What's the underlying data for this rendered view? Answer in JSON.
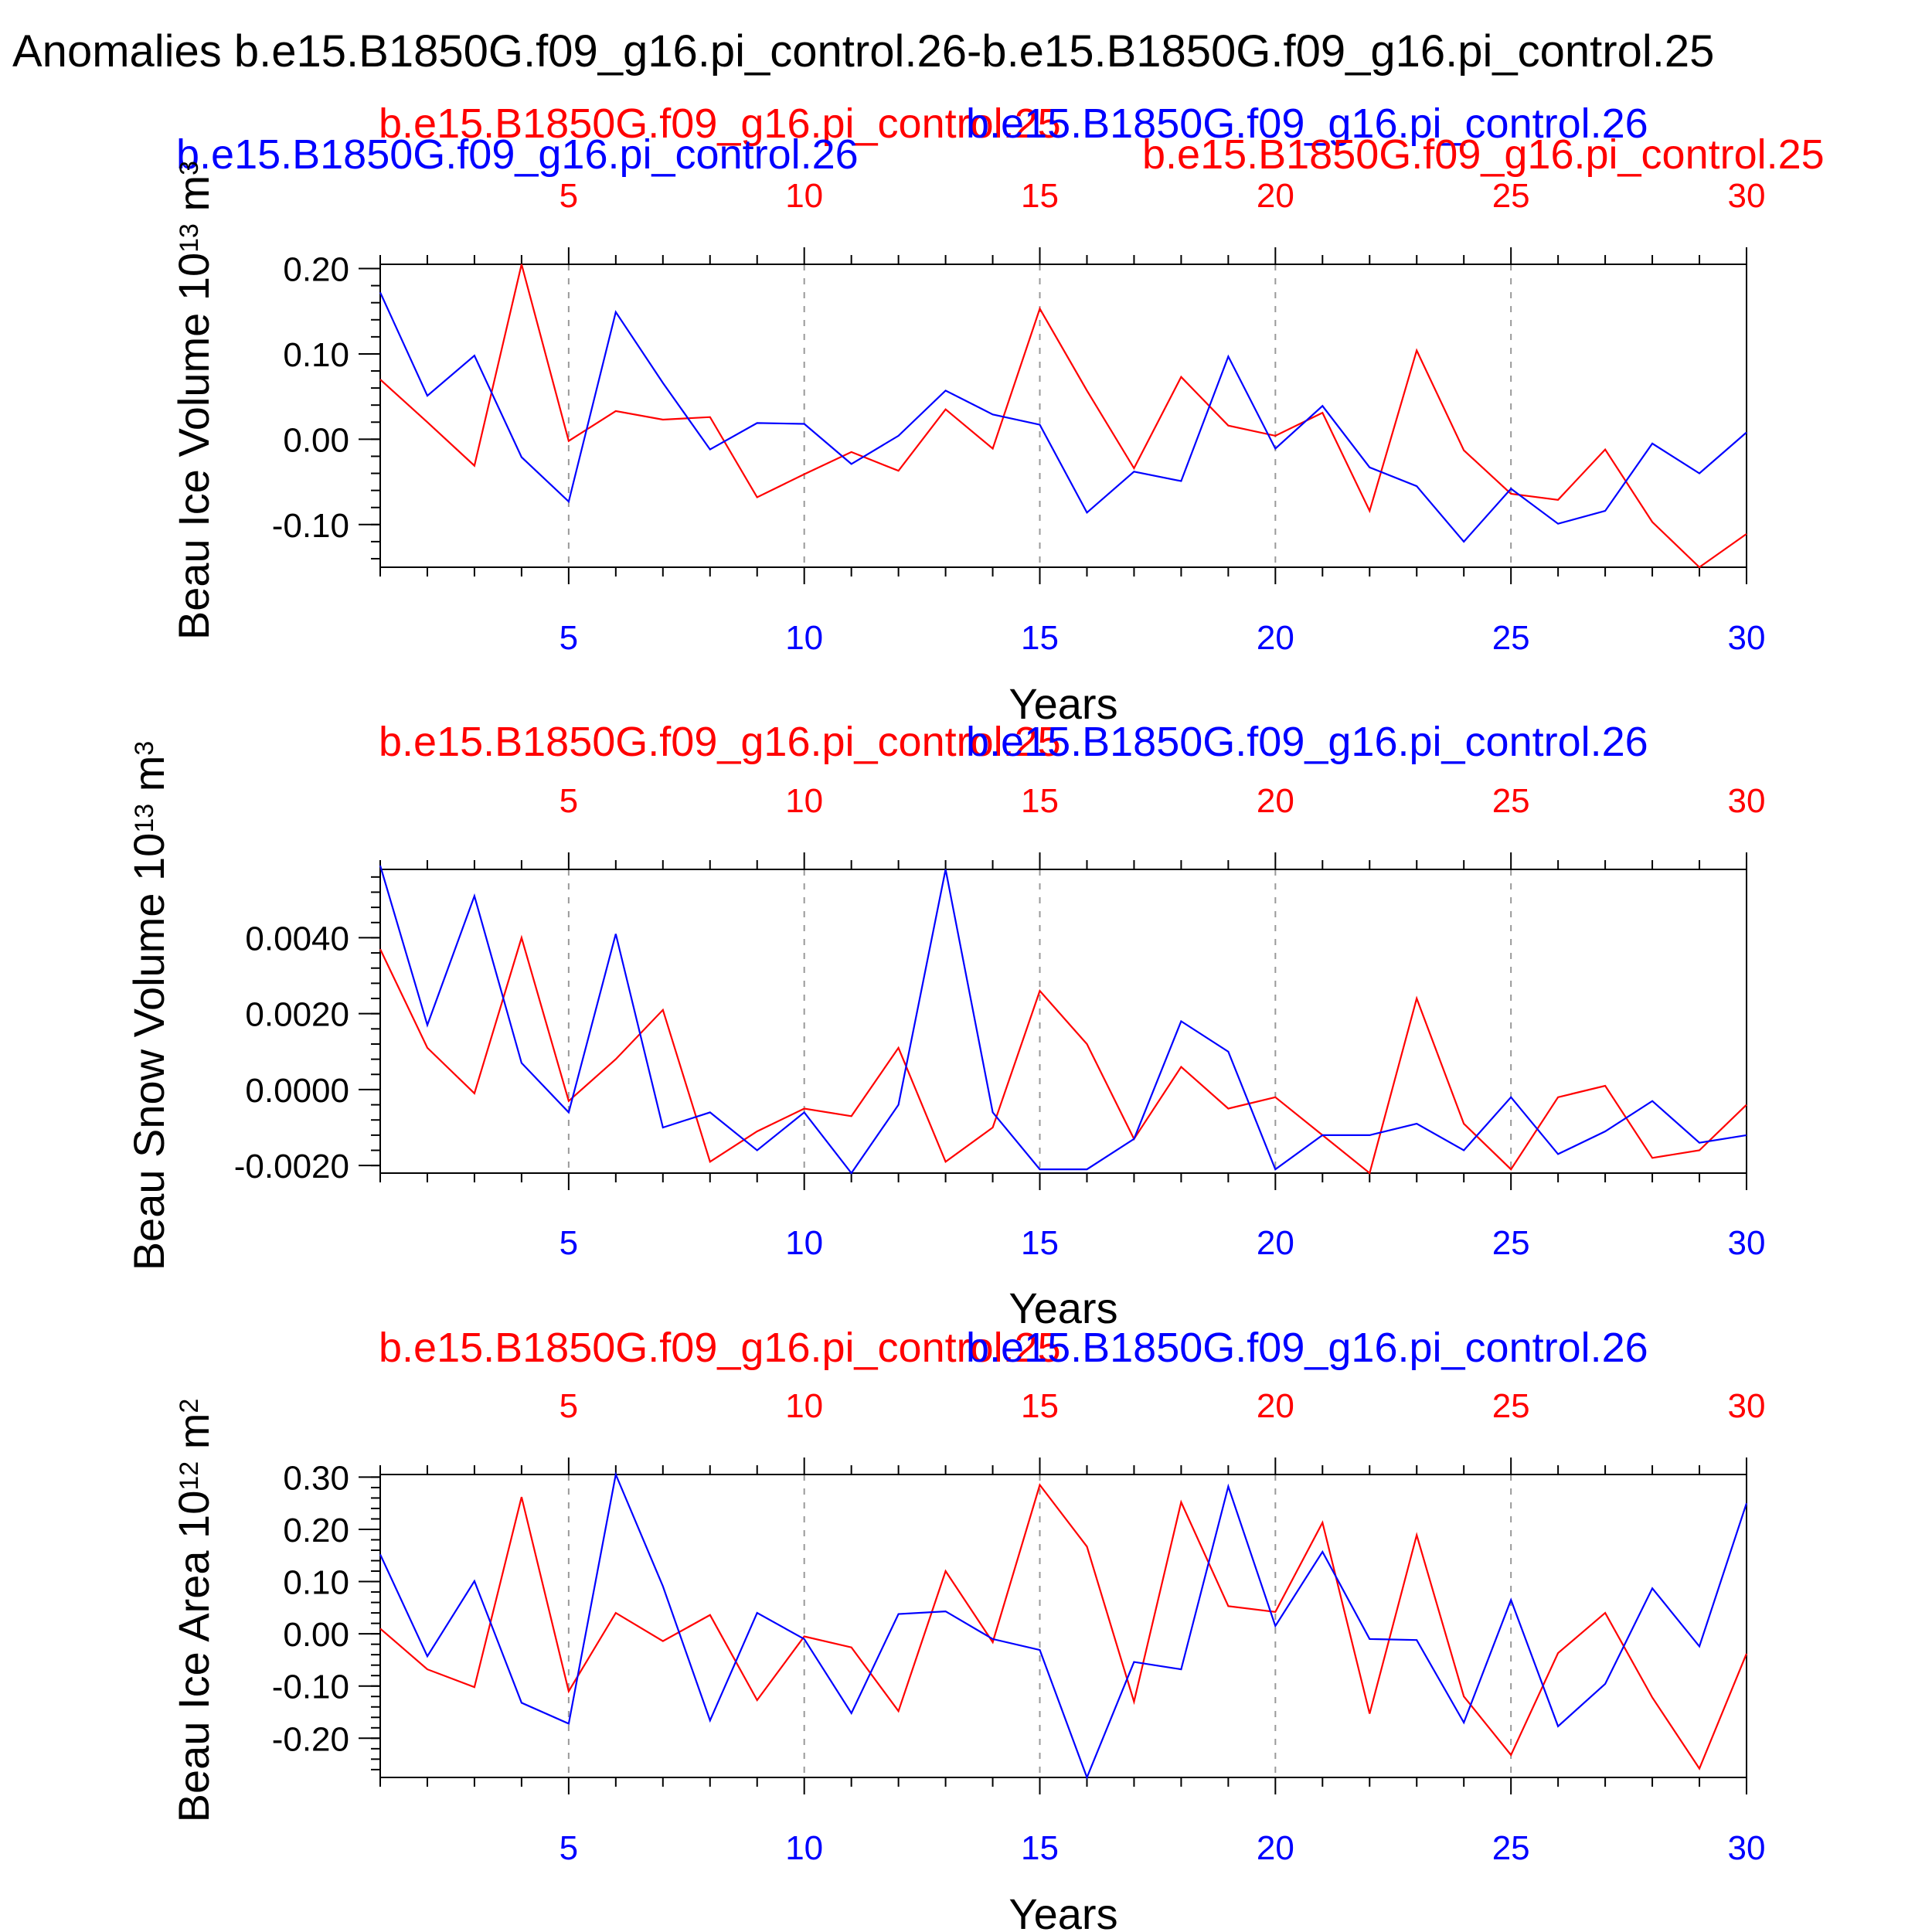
{
  "page_title": "Anomalies b.e15.B1850G.f09_g16.pi_control.26-b.e15.B1850G.f09_g16.pi_control.25",
  "colors": {
    "series_a": "#ff0000",
    "series_b": "#0000ff",
    "axis": "#000000",
    "grid": "#999999"
  },
  "chart_data": [
    {
      "type": "line",
      "ylabel": "Beau Ice Volume 10^13 m^3",
      "ylabel_parts": [
        "Beau Ice Volume 10",
        "13",
        " m",
        "3"
      ],
      "xlabel": "Years",
      "xlim": [
        1,
        30
      ],
      "ylim": [
        -0.15,
        0.205
      ],
      "yticks": [
        -0.1,
        0.0,
        0.1,
        0.2
      ],
      "ytick_labels": [
        "-0.10",
        "0.00",
        "0.10",
        "0.20"
      ],
      "xticks": [
        5,
        10,
        15,
        20,
        25,
        30
      ],
      "xtick_labels": [
        "5",
        "10",
        "15",
        "20",
        "25",
        "30"
      ],
      "grid": "vertical dashed at x ticks",
      "series": [
        {
          "name": "b.e15.B1850G.f09_g16.pi_control.25",
          "color": "#ff0000",
          "x": [
            1,
            2,
            3,
            4,
            5,
            6,
            7,
            8,
            9,
            10,
            11,
            12,
            13,
            14,
            15,
            16,
            17,
            18,
            19,
            20,
            21,
            22,
            23,
            24,
            25,
            26,
            27,
            28,
            29,
            30
          ],
          "values": [
            0.07,
            0.02,
            -0.031,
            0.205,
            -0.002,
            0.033,
            0.023,
            0.026,
            -0.068,
            -0.041,
            -0.015,
            -0.037,
            0.035,
            -0.011,
            0.153,
            0.057,
            -0.034,
            0.073,
            0.016,
            0.004,
            0.031,
            -0.084,
            0.104,
            -0.013,
            -0.064,
            -0.071,
            -0.012,
            -0.097,
            -0.15,
            -0.111
          ]
        },
        {
          "name": "b.e15.B1850G.f09_g16.pi_control.26",
          "color": "#0000ff",
          "x": [
            1,
            2,
            3,
            4,
            5,
            6,
            7,
            8,
            9,
            10,
            11,
            12,
            13,
            14,
            15,
            16,
            17,
            18,
            19,
            20,
            21,
            22,
            23,
            24,
            25,
            26,
            27,
            28,
            29,
            30
          ],
          "values": [
            0.172,
            0.051,
            0.098,
            -0.021,
            -0.073,
            0.149,
            0.066,
            -0.012,
            0.019,
            0.018,
            -0.029,
            0.004,
            0.057,
            0.029,
            0.017,
            -0.086,
            -0.038,
            -0.049,
            0.097,
            -0.011,
            0.039,
            -0.033,
            -0.055,
            -0.12,
            -0.058,
            -0.099,
            -0.084,
            -0.005,
            -0.04,
            0.008
          ]
        }
      ]
    },
    {
      "type": "line",
      "ylabel": "Beau Snow Volume 10^13 m^3",
      "ylabel_parts": [
        "Beau Snow Volume 10",
        "13",
        " m",
        "3"
      ],
      "xlabel": "Years",
      "xlim": [
        1,
        30
      ],
      "ylim": [
        -0.0022,
        0.0058
      ],
      "yticks": [
        -0.002,
        0.0,
        0.002,
        0.004
      ],
      "ytick_labels": [
        "-0.0020",
        "0.0000",
        "0.0020",
        "0.0040"
      ],
      "xticks": [
        5,
        10,
        15,
        20,
        25,
        30
      ],
      "xtick_labels": [
        "5",
        "10",
        "15",
        "20",
        "25",
        "30"
      ],
      "grid": "vertical dashed at x ticks",
      "series": [
        {
          "name": "b.e15.B1850G.f09_g16.pi_control.25",
          "color": "#ff0000",
          "x": [
            1,
            2,
            3,
            4,
            5,
            6,
            7,
            8,
            9,
            10,
            11,
            12,
            13,
            14,
            15,
            16,
            17,
            18,
            19,
            20,
            21,
            22,
            23,
            24,
            25,
            26,
            27,
            28,
            29,
            30
          ],
          "values": [
            0.0037,
            0.0011,
            -0.0001,
            0.004,
            -0.0003,
            0.0008,
            0.0021,
            -0.0019,
            -0.0011,
            -0.0005,
            -0.0007,
            0.0011,
            -0.0019,
            -0.001,
            0.0026,
            0.0012,
            -0.0013,
            0.0006,
            -0.0005,
            -0.0002,
            -0.0012,
            -0.0022,
            0.0024,
            -0.0009,
            -0.0021,
            -0.0002,
            0.0001,
            -0.0018,
            -0.0016,
            -0.0004
          ]
        },
        {
          "name": "b.e15.B1850G.f09_g16.pi_control.26",
          "color": "#0000ff",
          "x": [
            1,
            2,
            3,
            4,
            5,
            6,
            7,
            8,
            9,
            10,
            11,
            12,
            13,
            14,
            15,
            16,
            17,
            18,
            19,
            20,
            21,
            22,
            23,
            24,
            25,
            26,
            27,
            28,
            29,
            30
          ],
          "values": [
            0.0059,
            0.0017,
            0.0051,
            0.0007,
            -0.0006,
            0.0041,
            -0.001,
            -0.0006,
            -0.0016,
            -0.0006,
            -0.0022,
            -0.0004,
            0.0058,
            -0.0006,
            -0.0021,
            -0.0021,
            -0.0013,
            0.0018,
            0.001,
            -0.0021,
            -0.0012,
            -0.0012,
            -0.0009,
            -0.0016,
            -0.0002,
            -0.0017,
            -0.0011,
            -0.0003,
            -0.0014,
            -0.0012
          ]
        }
      ]
    },
    {
      "type": "line",
      "ylabel": "Beau Ice Area 10^12 m^2",
      "ylabel_parts": [
        "Beau Ice Area 10",
        "12",
        " m",
        "2"
      ],
      "xlabel": "Years",
      "xlim": [
        1,
        30
      ],
      "ylim": [
        -0.275,
        0.305
      ],
      "yticks": [
        -0.2,
        -0.1,
        0.0,
        0.1,
        0.2,
        0.3
      ],
      "ytick_labels": [
        "-0.20",
        "-0.10",
        "0.00",
        "0.10",
        "0.20",
        "0.30"
      ],
      "xticks": [
        5,
        10,
        15,
        20,
        25,
        30
      ],
      "xtick_labels": [
        "5",
        "10",
        "15",
        "20",
        "25",
        "30"
      ],
      "grid": "vertical dashed at x ticks",
      "series": [
        {
          "name": "b.e15.B1850G.f09_g16.pi_control.25",
          "color": "#ff0000",
          "x": [
            1,
            2,
            3,
            4,
            5,
            6,
            7,
            8,
            9,
            10,
            11,
            12,
            13,
            14,
            15,
            16,
            17,
            18,
            19,
            20,
            21,
            22,
            23,
            24,
            25,
            26,
            27,
            28,
            29,
            30
          ],
          "values": [
            0.01,
            -0.068,
            -0.102,
            0.262,
            -0.11,
            0.04,
            -0.014,
            0.036,
            -0.127,
            -0.005,
            -0.026,
            -0.148,
            0.12,
            -0.016,
            0.285,
            0.167,
            -0.13,
            0.252,
            0.053,
            0.042,
            0.213,
            -0.153,
            0.189,
            -0.12,
            -0.232,
            -0.037,
            0.04,
            -0.122,
            -0.258,
            -0.038
          ]
        },
        {
          "name": "b.e15.B1850G.f09_g16.pi_control.26",
          "color": "#0000ff",
          "x": [
            1,
            2,
            3,
            4,
            5,
            6,
            7,
            8,
            9,
            10,
            11,
            12,
            13,
            14,
            15,
            16,
            17,
            18,
            19,
            20,
            21,
            22,
            23,
            24,
            25,
            26,
            27,
            28,
            29,
            30
          ],
          "values": [
            0.152,
            -0.043,
            0.101,
            -0.132,
            -0.172,
            0.305,
            0.091,
            -0.166,
            0.04,
            -0.01,
            -0.152,
            0.038,
            0.043,
            -0.01,
            -0.031,
            -0.275,
            -0.054,
            -0.068,
            0.282,
            0.015,
            0.157,
            -0.01,
            -0.012,
            -0.17,
            0.065,
            -0.177,
            -0.096,
            0.087,
            -0.024,
            0.25
          ]
        }
      ]
    }
  ]
}
